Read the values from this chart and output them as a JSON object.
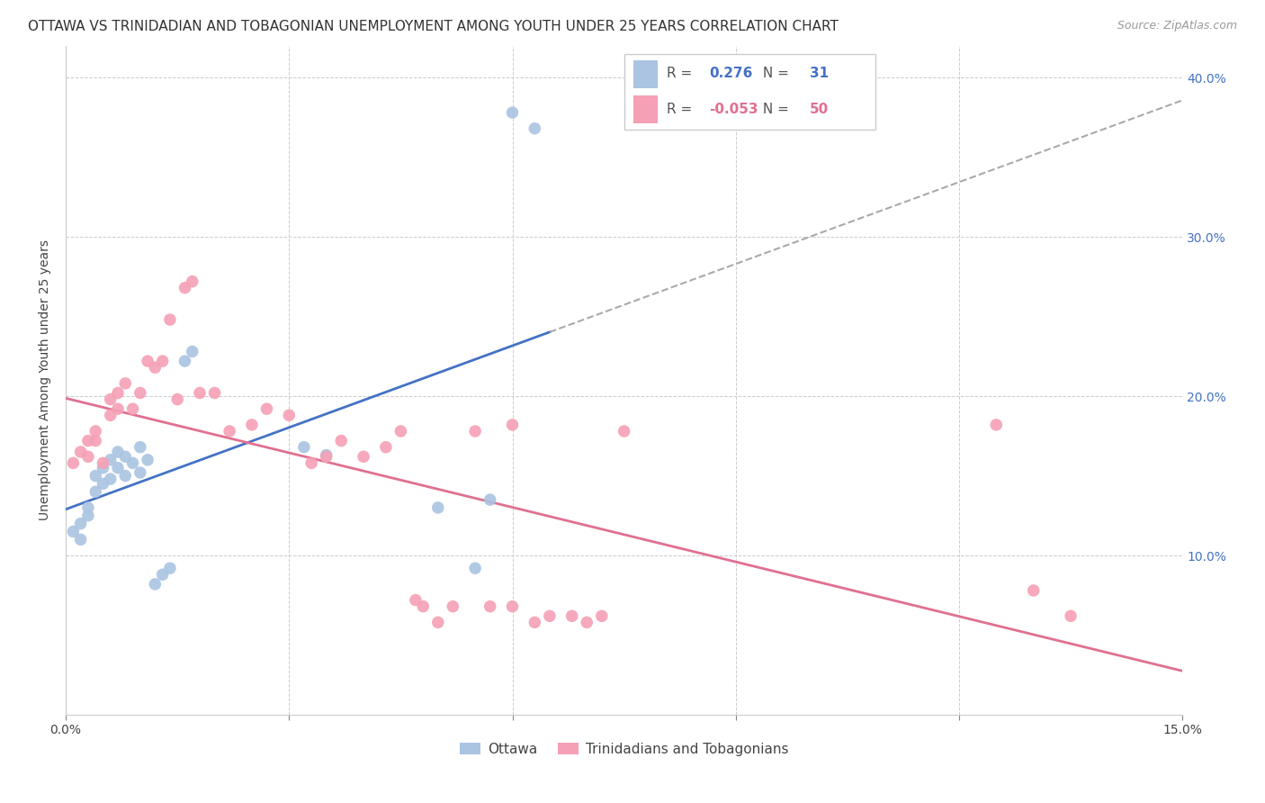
{
  "title": "OTTAWA VS TRINIDADIAN AND TOBAGONIAN UNEMPLOYMENT AMONG YOUTH UNDER 25 YEARS CORRELATION CHART",
  "source": "Source: ZipAtlas.com",
  "ylabel": "Unemployment Among Youth under 25 years",
  "xlim": [
    0.0,
    0.15
  ],
  "ylim": [
    0.0,
    0.42
  ],
  "legend_r_ottawa": "0.276",
  "legend_n_ottawa": "31",
  "legend_r_trint": "-0.053",
  "legend_n_trint": "50",
  "ottawa_color": "#aac4e2",
  "trint_color": "#f5a0b5",
  "ottawa_line_color": "#4472c4",
  "trint_line_color": "#e07090",
  "background_color": "#ffffff",
  "grid_color": "#cccccc",
  "title_fontsize": 11,
  "source_fontsize": 9,
  "marker_size": 95,
  "ottawa_x": [
    0.001,
    0.002,
    0.002,
    0.003,
    0.003,
    0.004,
    0.004,
    0.005,
    0.005,
    0.006,
    0.006,
    0.007,
    0.007,
    0.008,
    0.008,
    0.009,
    0.01,
    0.01,
    0.011,
    0.012,
    0.013,
    0.014,
    0.016,
    0.017,
    0.032,
    0.035,
    0.05,
    0.055,
    0.057,
    0.06,
    0.063
  ],
  "ottawa_y": [
    0.115,
    0.11,
    0.12,
    0.125,
    0.13,
    0.14,
    0.15,
    0.145,
    0.155,
    0.148,
    0.16,
    0.155,
    0.165,
    0.15,
    0.162,
    0.158,
    0.168,
    0.152,
    0.16,
    0.082,
    0.088,
    0.092,
    0.222,
    0.228,
    0.168,
    0.163,
    0.13,
    0.092,
    0.135,
    0.378,
    0.368
  ],
  "trint_x": [
    0.001,
    0.002,
    0.003,
    0.003,
    0.004,
    0.004,
    0.005,
    0.006,
    0.006,
    0.007,
    0.007,
    0.008,
    0.009,
    0.01,
    0.011,
    0.012,
    0.013,
    0.014,
    0.015,
    0.016,
    0.017,
    0.018,
    0.02,
    0.022,
    0.025,
    0.027,
    0.03,
    0.033,
    0.035,
    0.037,
    0.04,
    0.043,
    0.045,
    0.047,
    0.048,
    0.05,
    0.052,
    0.055,
    0.057,
    0.06,
    0.06,
    0.063,
    0.065,
    0.068,
    0.07,
    0.072,
    0.075,
    0.125,
    0.13,
    0.135
  ],
  "trint_y": [
    0.158,
    0.165,
    0.162,
    0.172,
    0.178,
    0.172,
    0.158,
    0.188,
    0.198,
    0.202,
    0.192,
    0.208,
    0.192,
    0.202,
    0.222,
    0.218,
    0.222,
    0.248,
    0.198,
    0.268,
    0.272,
    0.202,
    0.202,
    0.178,
    0.182,
    0.192,
    0.188,
    0.158,
    0.162,
    0.172,
    0.162,
    0.168,
    0.178,
    0.072,
    0.068,
    0.058,
    0.068,
    0.178,
    0.068,
    0.068,
    0.182,
    0.058,
    0.062,
    0.062,
    0.058,
    0.062,
    0.178,
    0.182,
    0.078,
    0.062
  ]
}
